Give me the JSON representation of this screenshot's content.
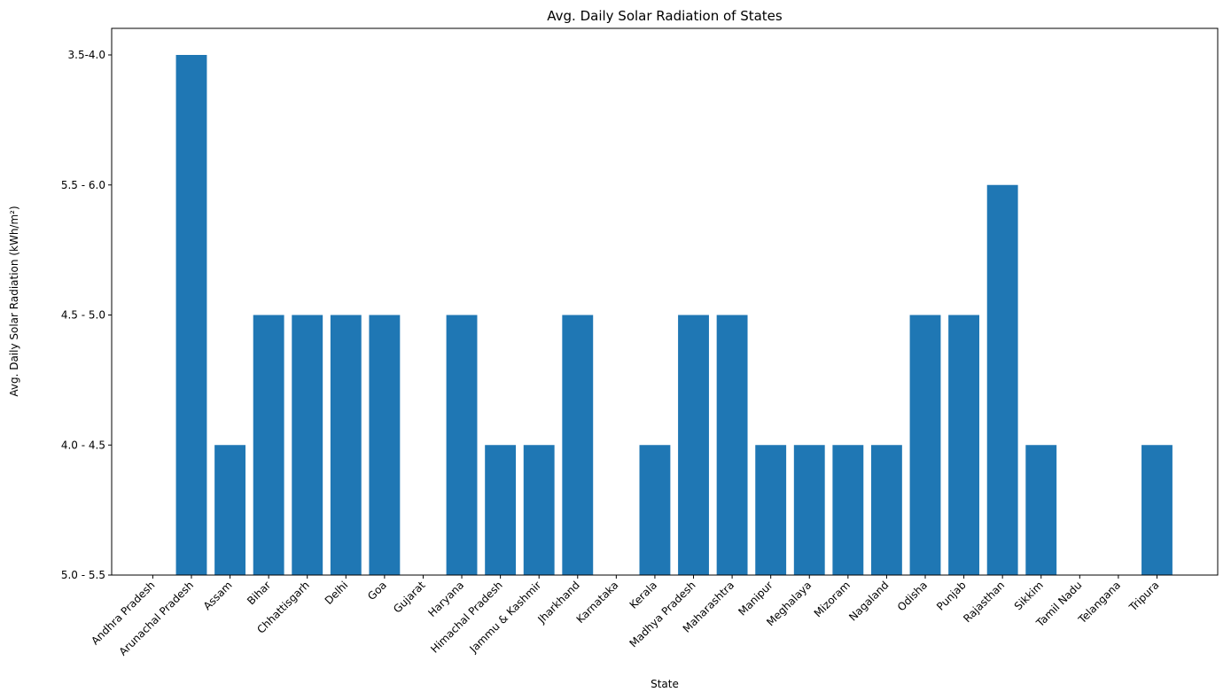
{
  "chart_data": {
    "type": "bar",
    "title": "Avg. Daily Solar Radiation of States",
    "xlabel": "State",
    "ylabel": "Avg. Daily Solar Radiation (kWh/m²)",
    "y_categories": [
      "5.0 - 5.5",
      "4.0 - 4.5",
      "4.5 - 5.0",
      "5.5 - 6.0",
      "3.5-4.0"
    ],
    "categories": [
      "Andhra Pradesh",
      "Arunachal Pradesh",
      "Assam",
      "Bihar",
      "Chhattisgarh",
      "Delhi",
      "Goa",
      "Gujarat",
      "Haryana",
      "Himachal Pradesh",
      "Jammu & Kashmir",
      "Jharkhand",
      "Karnataka",
      "Kerala",
      "Madhya Pradesh",
      "Maharashtra",
      "Manipur",
      "Meghalaya",
      "Mizoram",
      "Nagaland",
      "Odisha",
      "Punjab",
      "Rajasthan",
      "Sikkim",
      "Tamil Nadu",
      "Telangana",
      "Tripura"
    ],
    "values": [
      "5.0 - 5.5",
      "3.5-4.0",
      "4.0 - 4.5",
      "4.5 - 5.0",
      "4.5 - 5.0",
      "4.5 - 5.0",
      "4.5 - 5.0",
      "5.0 - 5.5",
      "4.5 - 5.0",
      "4.0 - 4.5",
      "4.0 - 4.5",
      "4.5 - 5.0",
      "5.0 - 5.5",
      "4.0 - 4.5",
      "4.5 - 5.0",
      "4.5 - 5.0",
      "4.0 - 4.5",
      "4.0 - 4.5",
      "4.0 - 4.5",
      "4.0 - 4.5",
      "4.5 - 5.0",
      "4.5 - 5.0",
      "5.5 - 6.0",
      "4.0 - 4.5",
      "5.0 - 5.5",
      "5.0 - 5.5",
      "4.0 - 4.5"
    ],
    "bar_color": "#1f77b4",
    "grid": false,
    "legend": "none"
  }
}
